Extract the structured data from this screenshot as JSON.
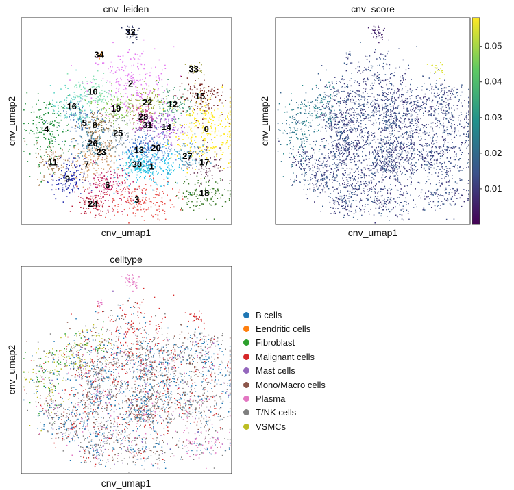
{
  "chart_data": [
    {
      "type": "scatter",
      "title": "cnv_leiden",
      "xlabel": "cnv_umap1",
      "ylabel": "cnv_umap2",
      "color_by": "cluster",
      "colormap": "categorical",
      "cluster_labels": [
        "32",
        "34",
        "33",
        "2",
        "10",
        "15",
        "16",
        "19",
        "22",
        "12",
        "28",
        "20",
        "5",
        "8",
        "31",
        "14",
        "0",
        "4",
        "2",
        "25",
        "26",
        "23",
        "13",
        "20",
        "27",
        "11",
        "7",
        "30",
        "1",
        "17",
        "9",
        "6",
        "3",
        "18",
        "24"
      ],
      "clusters": [
        {
          "label": "0",
          "color": "#ffe714",
          "cx": 0.88,
          "cy": 0.46,
          "sx": 0.09,
          "sy": 0.09,
          "n": 260
        },
        {
          "label": "1",
          "color": "#1fbde8",
          "cx": 0.62,
          "cy": 0.28,
          "sx": 0.08,
          "sy": 0.05,
          "n": 200
        },
        {
          "label": "2",
          "color": "#e377f0",
          "cx": 0.52,
          "cy": 0.68,
          "sx": 0.1,
          "sy": 0.09,
          "n": 240
        },
        {
          "label": "3",
          "color": "#e8504a",
          "cx": 0.55,
          "cy": 0.12,
          "sx": 0.09,
          "sy": 0.05,
          "n": 190
        },
        {
          "label": "4",
          "color": "#1f8f3a",
          "cx": 0.12,
          "cy": 0.46,
          "sx": 0.06,
          "sy": 0.08,
          "n": 170
        },
        {
          "label": "5",
          "color": "#3a6fb0",
          "cx": 0.3,
          "cy": 0.49,
          "sx": 0.05,
          "sy": 0.05,
          "n": 110
        },
        {
          "label": "6",
          "color": "#c0266b",
          "cx": 0.41,
          "cy": 0.19,
          "sx": 0.06,
          "sy": 0.05,
          "n": 140
        },
        {
          "label": "7",
          "color": "#d6a26e",
          "cx": 0.31,
          "cy": 0.29,
          "sx": 0.05,
          "sy": 0.05,
          "n": 110
        },
        {
          "label": "8",
          "color": "#8c6a3c",
          "cx": 0.35,
          "cy": 0.48,
          "sx": 0.04,
          "sy": 0.04,
          "n": 90
        },
        {
          "label": "9",
          "color": "#1a22a8",
          "cx": 0.22,
          "cy": 0.22,
          "sx": 0.04,
          "sy": 0.05,
          "n": 110
        },
        {
          "label": "10",
          "color": "#86e0b4",
          "cx": 0.34,
          "cy": 0.64,
          "sx": 0.05,
          "sy": 0.05,
          "n": 100
        },
        {
          "label": "11",
          "color": "#b08a64",
          "cx": 0.15,
          "cy": 0.3,
          "sx": 0.04,
          "sy": 0.05,
          "n": 90
        },
        {
          "label": "12",
          "color": "#4aa07a",
          "cx": 0.72,
          "cy": 0.58,
          "sx": 0.05,
          "sy": 0.05,
          "n": 110
        },
        {
          "label": "13",
          "color": "#2e68c6",
          "cx": 0.56,
          "cy": 0.36,
          "sx": 0.05,
          "sy": 0.04,
          "n": 110
        },
        {
          "label": "14",
          "color": "#a65ad6",
          "cx": 0.69,
          "cy": 0.47,
          "sx": 0.04,
          "sy": 0.04,
          "n": 90
        },
        {
          "label": "15",
          "color": "#7a2a26",
          "cx": 0.85,
          "cy": 0.62,
          "sx": 0.06,
          "sy": 0.05,
          "n": 120
        },
        {
          "label": "16",
          "color": "#62d4c6",
          "cx": 0.24,
          "cy": 0.57,
          "sx": 0.05,
          "sy": 0.05,
          "n": 100
        },
        {
          "label": "17",
          "color": "#6e3a5a",
          "cx": 0.87,
          "cy": 0.3,
          "sx": 0.05,
          "sy": 0.05,
          "n": 90
        },
        {
          "label": "18",
          "color": "#3a7a28",
          "cx": 0.87,
          "cy": 0.15,
          "sx": 0.07,
          "sy": 0.04,
          "n": 120
        },
        {
          "label": "19",
          "color": "#7cc040",
          "cx": 0.45,
          "cy": 0.56,
          "sx": 0.05,
          "sy": 0.05,
          "n": 100
        },
        {
          "label": "20",
          "color": "#6a8ed8",
          "cx": 0.64,
          "cy": 0.37,
          "sx": 0.04,
          "sy": 0.04,
          "n": 90
        },
        {
          "label": "22",
          "color": "#9aa830",
          "cx": 0.6,
          "cy": 0.59,
          "sx": 0.05,
          "sy": 0.04,
          "n": 90
        },
        {
          "label": "23",
          "color": "#c89870",
          "cx": 0.38,
          "cy": 0.35,
          "sx": 0.04,
          "sy": 0.04,
          "n": 80
        },
        {
          "label": "24",
          "color": "#b81e3a",
          "cx": 0.34,
          "cy": 0.1,
          "sx": 0.04,
          "sy": 0.03,
          "n": 80
        },
        {
          "label": "25",
          "color": "#8a9aa0",
          "cx": 0.46,
          "cy": 0.44,
          "sx": 0.04,
          "sy": 0.04,
          "n": 80
        },
        {
          "label": "26",
          "color": "#4a8a9e",
          "cx": 0.34,
          "cy": 0.39,
          "sx": 0.04,
          "sy": 0.04,
          "n": 80
        },
        {
          "label": "27",
          "color": "#5aa0c0",
          "cx": 0.79,
          "cy": 0.33,
          "sx": 0.04,
          "sy": 0.04,
          "n": 80
        },
        {
          "label": "28",
          "color": "#d04890",
          "cx": 0.58,
          "cy": 0.52,
          "sx": 0.03,
          "sy": 0.03,
          "n": 60
        },
        {
          "label": "30",
          "color": "#28c8d8",
          "cx": 0.55,
          "cy": 0.29,
          "sx": 0.04,
          "sy": 0.03,
          "n": 80
        },
        {
          "label": "31",
          "color": "#9050a8",
          "cx": 0.6,
          "cy": 0.48,
          "sx": 0.03,
          "sy": 0.03,
          "n": 60
        },
        {
          "label": "32",
          "color": "#283060",
          "cx": 0.52,
          "cy": 0.93,
          "sx": 0.02,
          "sy": 0.02,
          "n": 40
        },
        {
          "label": "33",
          "color": "#a0a040",
          "cx": 0.82,
          "cy": 0.75,
          "sx": 0.02,
          "sy": 0.02,
          "n": 20
        },
        {
          "label": "34",
          "color": "#f09020",
          "cx": 0.37,
          "cy": 0.82,
          "sx": 0.006,
          "sy": 0.01,
          "n": 10
        }
      ]
    },
    {
      "type": "scatter",
      "title": "cnv_score",
      "xlabel": "cnv_umap1",
      "ylabel": "cnv_umap2",
      "color_by": "cnv_score",
      "colormap": "viridis",
      "colorbar_ticks": [
        0.01,
        0.02,
        0.03,
        0.04,
        0.05
      ],
      "colorbar_range": [
        0.0,
        0.058
      ]
    },
    {
      "type": "scatter",
      "title": "celltype",
      "xlabel": "cnv_umap1",
      "ylabel": "cnv_umap2",
      "color_by": "celltype",
      "legend_placement": "right",
      "legend": [
        {
          "name": "B cells",
          "color": "#1f77b4"
        },
        {
          "name": "Eendritic cells",
          "color": "#ff7f0e"
        },
        {
          "name": "Fibroblast",
          "color": "#2ca02c"
        },
        {
          "name": "Malignant cells",
          "color": "#d62728"
        },
        {
          "name": "Mast cells",
          "color": "#9467bd"
        },
        {
          "name": "Mono/Macro cells",
          "color": "#8c564b"
        },
        {
          "name": "Plasma",
          "color": "#e377c2"
        },
        {
          "name": "T/NK cells",
          "color": "#7f7f7f"
        },
        {
          "name": "VSMCs",
          "color": "#bcbd22"
        }
      ]
    }
  ]
}
